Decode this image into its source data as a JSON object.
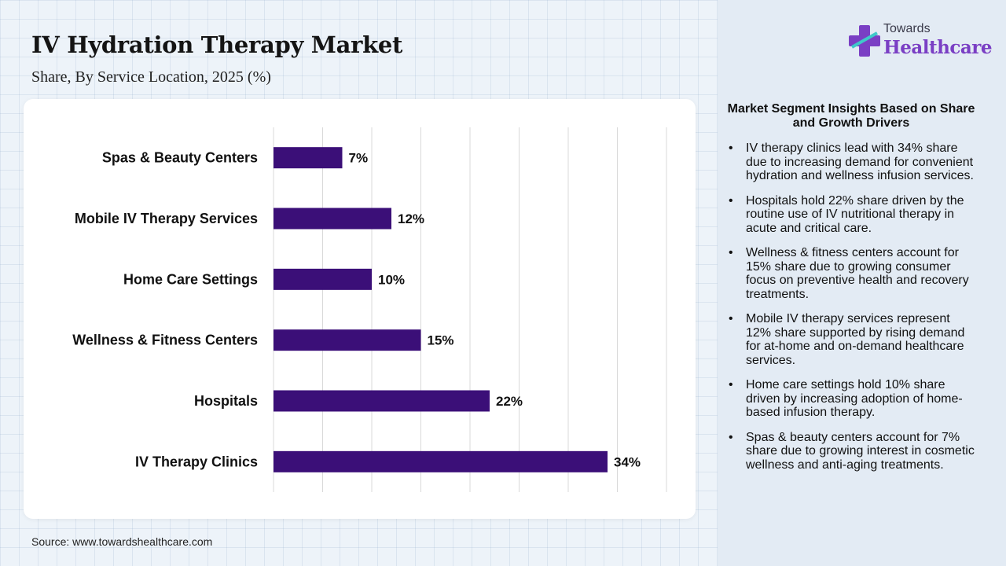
{
  "header": {
    "title": "IV Hydration Therapy Market",
    "subtitle": "Share, By Service Location, 2025 (%)"
  },
  "logo": {
    "line1": "Towards",
    "line2": "Healthcare"
  },
  "colors": {
    "bar": "#3b0f78",
    "accent": "#7a3fc4"
  },
  "chart_data": {
    "type": "bar",
    "orientation": "horizontal",
    "categories": [
      "Spas & Beauty Centers",
      "Mobile IV Therapy Services",
      "Home Care Settings",
      "Wellness & Fitness Centers",
      "Hospitals",
      "IV Therapy Clinics"
    ],
    "values": [
      7,
      12,
      10,
      15,
      22,
      34
    ],
    "data_labels": [
      "7%",
      "12%",
      "10%",
      "15%",
      "22%",
      "34%"
    ],
    "xlim": [
      0,
      40
    ],
    "grid": true
  },
  "insights": {
    "title": "Market Segment Insights Based on Share and Growth Drivers",
    "items": [
      "IV therapy clinics lead with 34% share due to increasing demand for convenient hydration and wellness infusion services.",
      "Hospitals hold 22% share driven by the routine use of IV nutritional therapy in acute and critical care.",
      "Wellness & fitness centers account for 15% share due to growing consumer focus on preventive health and recovery treatments.",
      "Mobile IV therapy services represent 12% share supported by rising demand for at-home and on-demand healthcare services.",
      "Home care settings hold 10% share driven by increasing adoption of home-based infusion therapy.",
      "Spas & beauty centers account for 7% share due to growing interest in cosmetic wellness and anti-aging treatments."
    ]
  },
  "footer": {
    "source": "Source: www.towardshealthcare.com"
  }
}
